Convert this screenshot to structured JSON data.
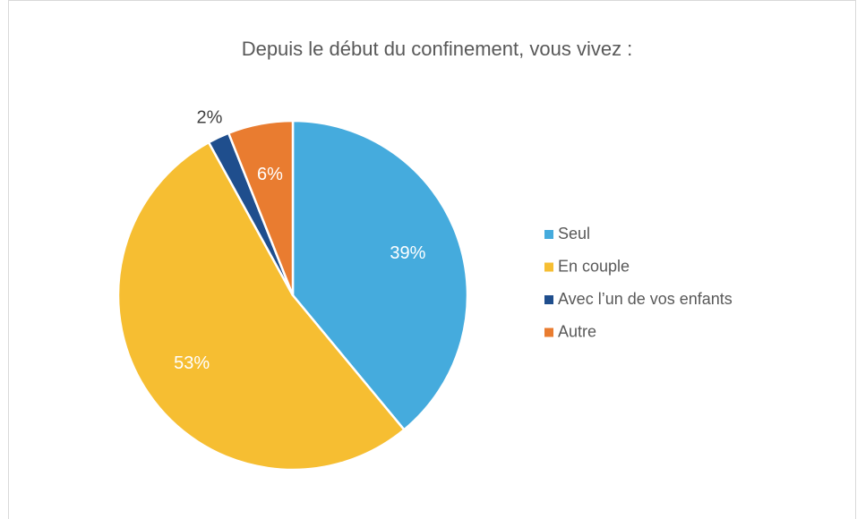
{
  "chart_data": {
    "type": "pie",
    "title": "Depuis le début du confinement, vous vivez :",
    "categories": [
      "Seul",
      "En couple",
      "Avec l’un de vos enfants",
      "Autre"
    ],
    "values": [
      39,
      53,
      2,
      6
    ],
    "value_labels": [
      "39%",
      "53%",
      "2%",
      "6%"
    ],
    "colors": [
      "#45abdd",
      "#f6be32",
      "#1f4e8d",
      "#e97c30"
    ]
  }
}
